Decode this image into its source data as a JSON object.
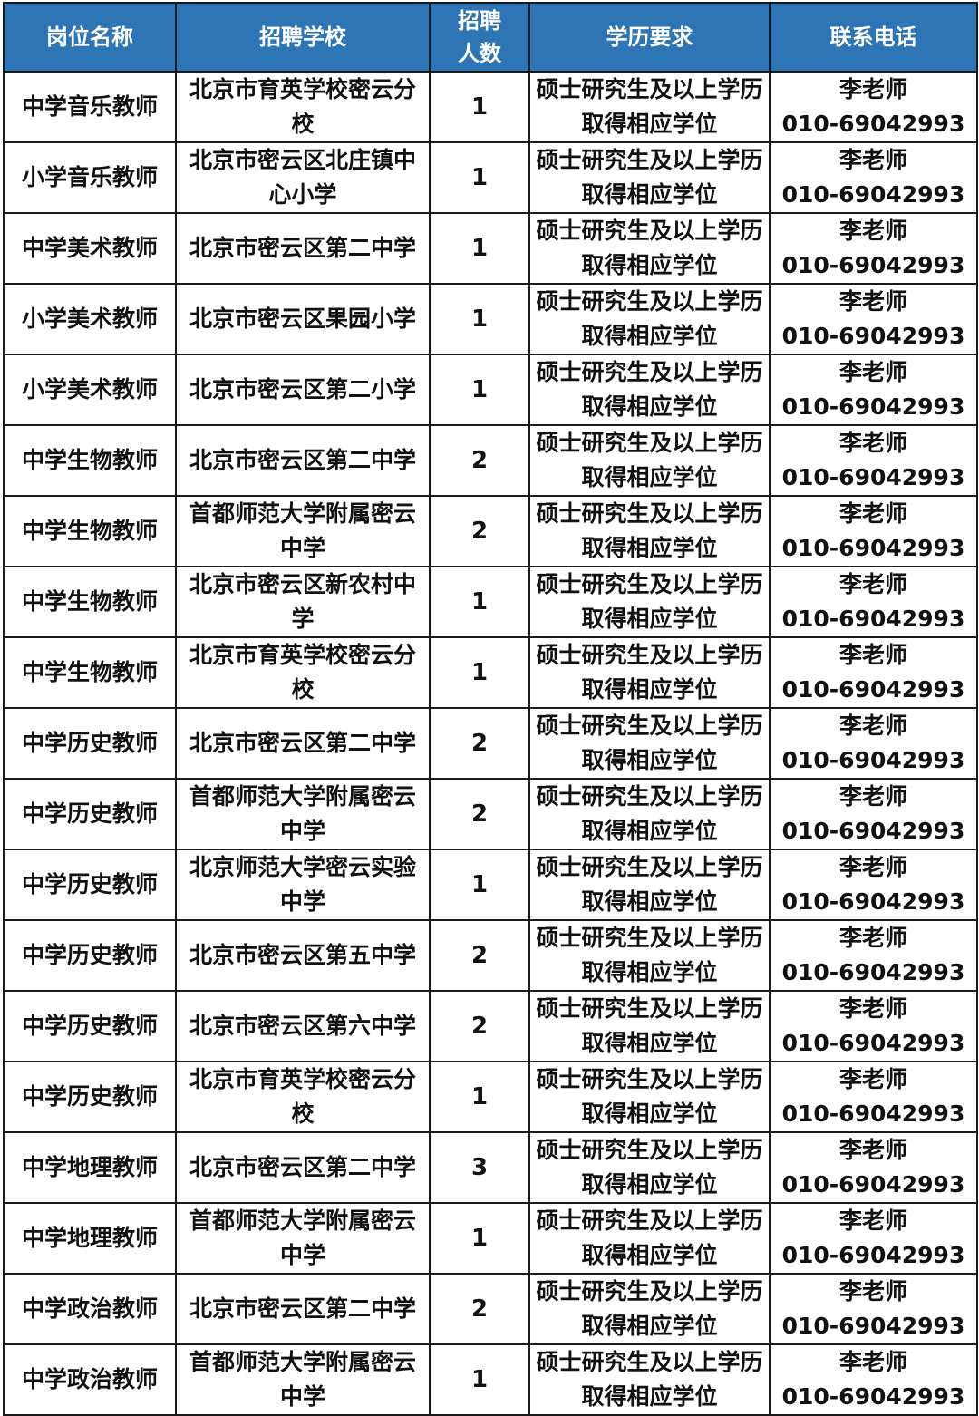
{
  "header": {
    "position": "岗位名称",
    "school": "招聘学校",
    "count": "招聘人数",
    "education": "学历要求",
    "contact": "联系电话"
  },
  "header_color": "#2e75b6",
  "rows": [
    {
      "position": "中学音乐教师",
      "school": "北京市育英学校密云分校",
      "count": "1",
      "education": "硕士研究生及以上学历取得相应学位",
      "contact_name": "李老师",
      "phone": "010-69042993"
    },
    {
      "position": "小学音乐教师",
      "school": "北京市密云区北庄镇中心小学",
      "count": "1",
      "education": "硕士研究生及以上学历取得相应学位",
      "contact_name": "李老师",
      "phone": "010-69042993"
    },
    {
      "position": "中学美术教师",
      "school": "北京市密云区第二中学",
      "count": "1",
      "education": "硕士研究生及以上学历取得相应学位",
      "contact_name": "李老师",
      "phone": "010-69042993"
    },
    {
      "position": "小学美术教师",
      "school": "北京市密云区果园小学",
      "count": "1",
      "education": "硕士研究生及以上学历取得相应学位",
      "contact_name": "李老师",
      "phone": "010-69042993"
    },
    {
      "position": "小学美术教师",
      "school": "北京市密云区第二小学",
      "count": "1",
      "education": "硕士研究生及以上学历取得相应学位",
      "contact_name": "李老师",
      "phone": "010-69042993"
    },
    {
      "position": "中学生物教师",
      "school": "北京市密云区第二中学",
      "count": "2",
      "education": "硕士研究生及以上学历取得相应学位",
      "contact_name": "李老师",
      "phone": "010-69042993"
    },
    {
      "position": "中学生物教师",
      "school": "首都师范大学附属密云中学",
      "count": "2",
      "education": "硕士研究生及以上学历取得相应学位",
      "contact_name": "李老师",
      "phone": "010-69042993"
    },
    {
      "position": "中学生物教师",
      "school": "北京市密云区新农村中学",
      "count": "1",
      "education": "硕士研究生及以上学历取得相应学位",
      "contact_name": "李老师",
      "phone": "010-69042993"
    },
    {
      "position": "中学生物教师",
      "school": "北京市育英学校密云分校",
      "count": "1",
      "education": "硕士研究生及以上学历取得相应学位",
      "contact_name": "李老师",
      "phone": "010-69042993"
    },
    {
      "position": "中学历史教师",
      "school": "北京市密云区第二中学",
      "count": "2",
      "education": "硕士研究生及以上学历取得相应学位",
      "contact_name": "李老师",
      "phone": "010-69042993"
    },
    {
      "position": "中学历史教师",
      "school": "首都师范大学附属密云中学",
      "count": "2",
      "education": "硕士研究生及以上学历取得相应学位",
      "contact_name": "李老师",
      "phone": "010-69042993"
    },
    {
      "position": "中学历史教师",
      "school": "北京师范大学密云实验中学",
      "count": "1",
      "education": "硕士研究生及以上学历取得相应学位",
      "contact_name": "李老师",
      "phone": "010-69042993"
    },
    {
      "position": "中学历史教师",
      "school": "北京市密云区第五中学",
      "count": "2",
      "education": "硕士研究生及以上学历取得相应学位",
      "contact_name": "李老师",
      "phone": "010-69042993"
    },
    {
      "position": "中学历史教师",
      "school": "北京市密云区第六中学",
      "count": "2",
      "education": "硕士研究生及以上学历取得相应学位",
      "contact_name": "李老师",
      "phone": "010-69042993"
    },
    {
      "position": "中学历史教师",
      "school": "北京市育英学校密云分校",
      "count": "1",
      "education": "硕士研究生及以上学历取得相应学位",
      "contact_name": "李老师",
      "phone": "010-69042993"
    },
    {
      "position": "中学地理教师",
      "school": "北京市密云区第二中学",
      "count": "3",
      "education": "硕士研究生及以上学历取得相应学位",
      "contact_name": "李老师",
      "phone": "010-69042993"
    },
    {
      "position": "中学地理教师",
      "school": "首都师范大学附属密云中学",
      "count": "1",
      "education": "硕士研究生及以上学历取得相应学位",
      "contact_name": "李老师",
      "phone": "010-69042993"
    },
    {
      "position": "中学政治教师",
      "school": "北京市密云区第二中学",
      "count": "2",
      "education": "硕士研究生及以上学历取得相应学位",
      "contact_name": "李老师",
      "phone": "010-69042993"
    },
    {
      "position": "中学政治教师",
      "school": "首都师范大学附属密云中学",
      "count": "1",
      "education": "硕士研究生及以上学历取得相应学位",
      "contact_name": "李老师",
      "phone": "010-69042993"
    }
  ]
}
